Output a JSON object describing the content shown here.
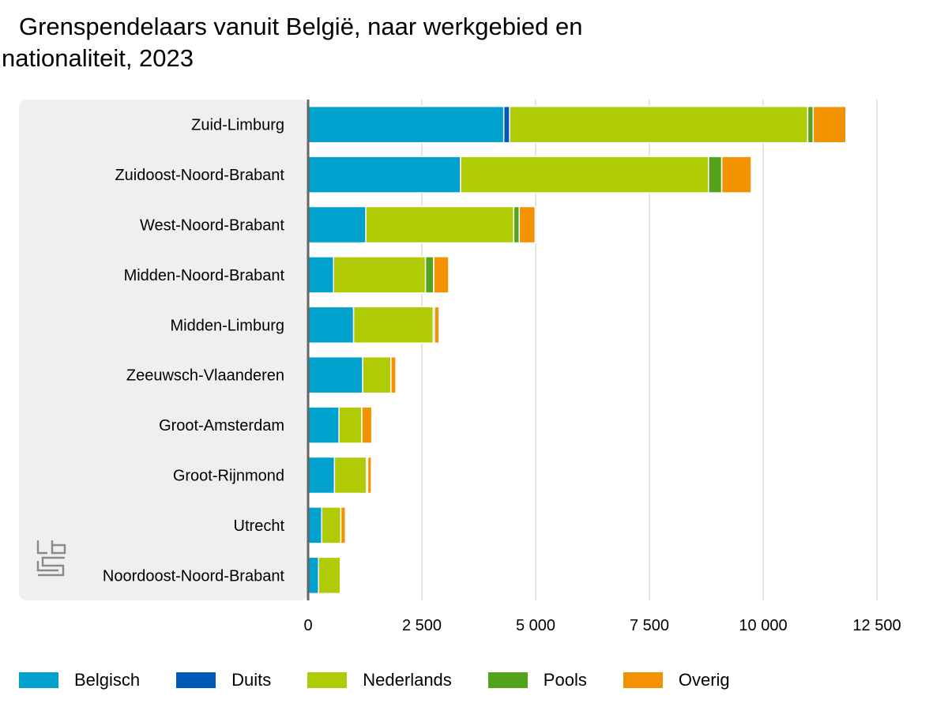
{
  "chart_data": {
    "type": "bar",
    "orientation": "horizontal",
    "stacked": true,
    "title_line1": "Grenspendelaars vanuit België, naar werkgebied en",
    "title_line2": "nationaliteit, 2023",
    "categories": [
      "Zuid-Limburg",
      "Zuidoost-Noord-Brabant",
      "West-Noord-Brabant",
      "Midden-Noord-Brabant",
      "Midden-Limburg",
      "Zeeuwsch-Vlaanderen",
      "Groot-Amsterdam",
      "Groot-Rijnmond",
      "Utrecht",
      "Noordoost-Noord-Brabant"
    ],
    "series": [
      {
        "name": "Belgisch",
        "color": "#00a1cd",
        "values": [
          4300,
          3350,
          1270,
          560,
          1000,
          1200,
          680,
          580,
          300,
          230
        ]
      },
      {
        "name": "Duits",
        "color": "#0058b8",
        "values": [
          130,
          0,
          0,
          0,
          0,
          0,
          0,
          0,
          0,
          0
        ]
      },
      {
        "name": "Nederlands",
        "color": "#afcb05",
        "values": [
          6550,
          5450,
          3250,
          2020,
          1750,
          620,
          500,
          700,
          420,
          480
        ]
      },
      {
        "name": "Pools",
        "color": "#53a31d",
        "values": [
          120,
          290,
          120,
          180,
          30,
          0,
          0,
          30,
          0,
          0
        ]
      },
      {
        "name": "Overig",
        "color": "#f39200",
        "values": [
          720,
          650,
          350,
          330,
          100,
          110,
          220,
          80,
          100,
          0
        ]
      }
    ],
    "xlim": [
      0,
      12500
    ],
    "xticks": [
      0,
      2500,
      5000,
      7500,
      10000,
      12500
    ],
    "xtick_labels": [
      "0",
      "2 500",
      "5 000",
      "7 500",
      "10 000",
      "12 500"
    ],
    "grid": true,
    "legend_position": "bottom"
  },
  "logo": {
    "name": "cbs-logo"
  }
}
